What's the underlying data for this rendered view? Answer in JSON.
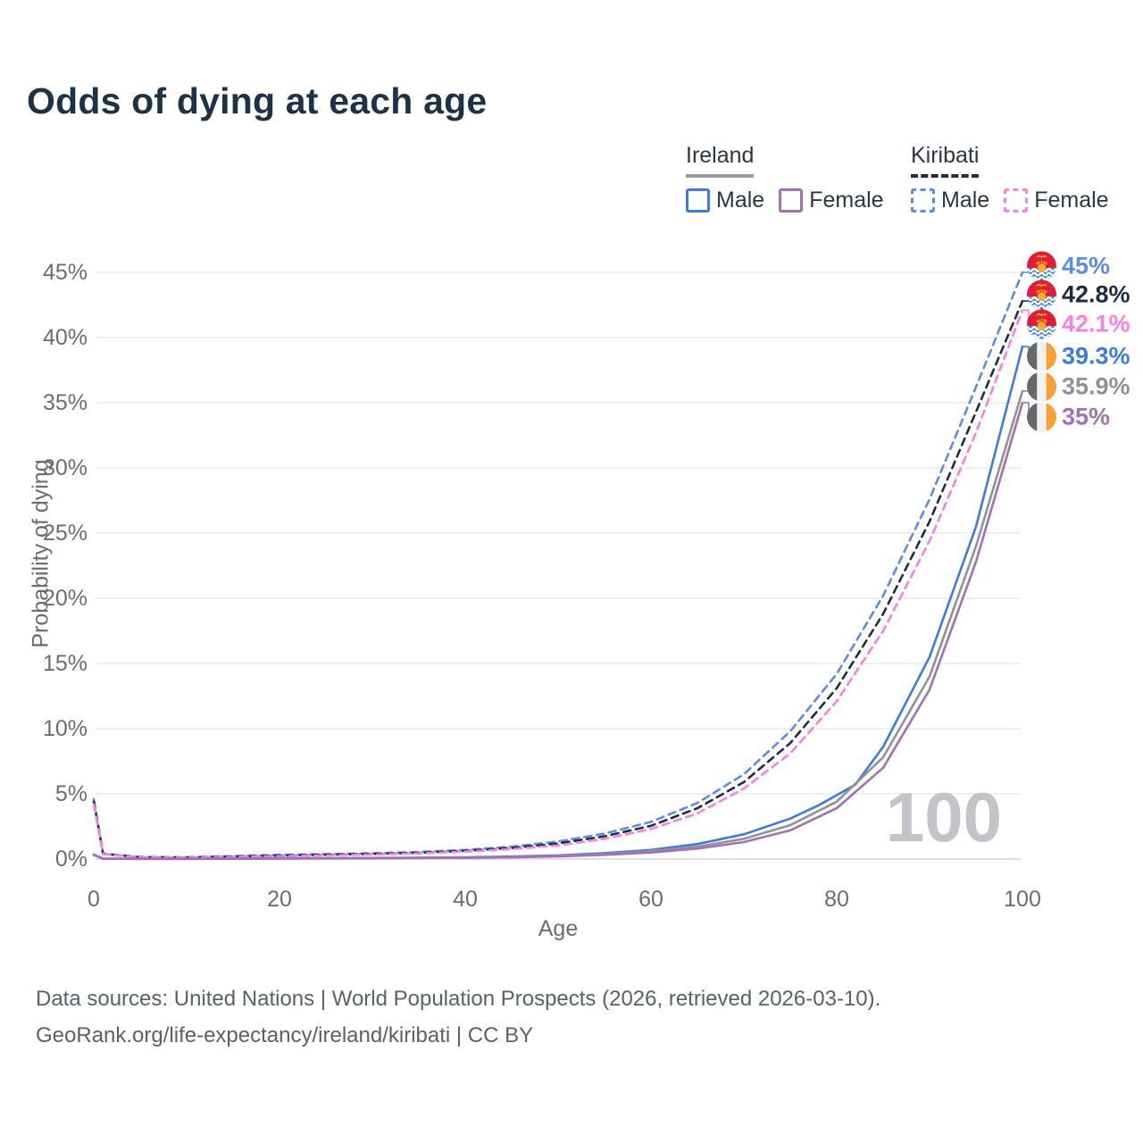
{
  "header": {
    "title": "Odds of dying at each age"
  },
  "legend": {
    "groups": [
      {
        "label": "Ireland",
        "line_style": "solid",
        "line_color": "#9a9a9a",
        "items": [
          {
            "label": "Male",
            "color": "#3d7be0"
          },
          {
            "label": "Female",
            "color": "#a46fb4"
          }
        ]
      },
      {
        "label": "Kiribati",
        "line_style": "dashed",
        "line_color": "#1e2c45",
        "items": [
          {
            "label": "Male",
            "color": "#5b8ce9"
          },
          {
            "label": "Female",
            "color": "#fa7de9"
          }
        ]
      }
    ]
  },
  "chart_data": {
    "type": "line",
    "title": "Odds of dying at each age",
    "xlabel": "Age",
    "ylabel": "Probability of dying",
    "xlim": [
      0,
      100
    ],
    "ylim": [
      0,
      45
    ],
    "grid": "horizontal",
    "legend_position": "top-right",
    "age_counter": "100",
    "xticks": {
      "values": [
        0,
        20,
        40,
        60,
        80,
        100
      ],
      "labels": [
        "0",
        "20",
        "40",
        "60",
        "80",
        "100"
      ]
    },
    "yticks": {
      "values": [
        0,
        5,
        10,
        15,
        20,
        25,
        30,
        35,
        40,
        45
      ],
      "labels": [
        "0%",
        "5%",
        "10%",
        "15%",
        "20%",
        "25%",
        "30%",
        "35%",
        "40%",
        "45%"
      ]
    },
    "series": [
      {
        "name": "Kiribati Male",
        "country": "Kiribati",
        "sex": "Male",
        "color": "#5b8ce9",
        "dash": true,
        "end_label": "45%",
        "points": [
          [
            0,
            4.6
          ],
          [
            1,
            0.42
          ],
          [
            5,
            0.16
          ],
          [
            10,
            0.14
          ],
          [
            15,
            0.22
          ],
          [
            20,
            0.32
          ],
          [
            25,
            0.38
          ],
          [
            30,
            0.44
          ],
          [
            35,
            0.54
          ],
          [
            40,
            0.7
          ],
          [
            45,
            0.95
          ],
          [
            50,
            1.35
          ],
          [
            55,
            1.95
          ],
          [
            60,
            2.85
          ],
          [
            65,
            4.3
          ],
          [
            70,
            6.5
          ],
          [
            75,
            9.8
          ],
          [
            80,
            14.2
          ],
          [
            85,
            20.2
          ],
          [
            90,
            27.6
          ],
          [
            95,
            36.2
          ],
          [
            100,
            45
          ]
        ]
      },
      {
        "name": "Kiribati Both sexes",
        "country": "Kiribati",
        "sex": "Both",
        "color": "#1e2c45",
        "dash": true,
        "end_label": "42.8%",
        "points": [
          [
            0,
            4.4
          ],
          [
            1,
            0.4
          ],
          [
            5,
            0.14
          ],
          [
            10,
            0.12
          ],
          [
            15,
            0.19
          ],
          [
            20,
            0.27
          ],
          [
            25,
            0.33
          ],
          [
            30,
            0.39
          ],
          [
            35,
            0.48
          ],
          [
            40,
            0.63
          ],
          [
            45,
            0.85
          ],
          [
            50,
            1.2
          ],
          [
            55,
            1.75
          ],
          [
            60,
            2.55
          ],
          [
            65,
            3.9
          ],
          [
            70,
            5.9
          ],
          [
            75,
            8.9
          ],
          [
            80,
            13.1
          ],
          [
            85,
            18.8
          ],
          [
            90,
            25.9
          ],
          [
            95,
            34.3
          ],
          [
            100,
            42.8
          ]
        ]
      },
      {
        "name": "Kiribati Female",
        "country": "Kiribati",
        "sex": "Female",
        "color": "#fa7de9",
        "dash": true,
        "end_label": "42.1%",
        "points": [
          [
            0,
            4.2
          ],
          [
            1,
            0.37
          ],
          [
            5,
            0.13
          ],
          [
            10,
            0.11
          ],
          [
            15,
            0.16
          ],
          [
            20,
            0.22
          ],
          [
            25,
            0.28
          ],
          [
            30,
            0.34
          ],
          [
            35,
            0.43
          ],
          [
            40,
            0.57
          ],
          [
            45,
            0.76
          ],
          [
            50,
            1.05
          ],
          [
            55,
            1.55
          ],
          [
            60,
            2.3
          ],
          [
            65,
            3.5
          ],
          [
            70,
            5.4
          ],
          [
            75,
            8.1
          ],
          [
            80,
            12.1
          ],
          [
            85,
            17.5
          ],
          [
            90,
            24.4
          ],
          [
            95,
            32.7
          ],
          [
            100,
            42.1
          ]
        ]
      },
      {
        "name": "Ireland Male",
        "country": "Ireland",
        "sex": "Male",
        "color": "#3d7be0",
        "dash": false,
        "end_label": "39.3%",
        "points": [
          [
            0,
            0.35
          ],
          [
            1,
            0.03
          ],
          [
            5,
            0.02
          ],
          [
            10,
            0.02
          ],
          [
            15,
            0.04
          ],
          [
            20,
            0.06
          ],
          [
            25,
            0.07
          ],
          [
            30,
            0.08
          ],
          [
            35,
            0.1
          ],
          [
            40,
            0.13
          ],
          [
            45,
            0.19
          ],
          [
            50,
            0.28
          ],
          [
            55,
            0.45
          ],
          [
            60,
            0.7
          ],
          [
            65,
            1.15
          ],
          [
            70,
            1.9
          ],
          [
            75,
            3.1
          ],
          [
            78,
            4.1
          ],
          [
            80,
            4.9
          ],
          [
            82,
            5.7
          ],
          [
            85,
            8.6
          ],
          [
            90,
            15.5
          ],
          [
            95,
            25.5
          ],
          [
            100,
            39.3
          ]
        ]
      },
      {
        "name": "Ireland Both sexes",
        "country": "Ireland",
        "sex": "Both",
        "color": "#8f9296",
        "dash": false,
        "end_label": "35.9%",
        "points": [
          [
            0,
            0.33
          ],
          [
            1,
            0.025
          ],
          [
            5,
            0.015
          ],
          [
            10,
            0.015
          ],
          [
            15,
            0.03
          ],
          [
            20,
            0.05
          ],
          [
            25,
            0.06
          ],
          [
            30,
            0.07
          ],
          [
            35,
            0.09
          ],
          [
            40,
            0.11
          ],
          [
            45,
            0.16
          ],
          [
            50,
            0.24
          ],
          [
            55,
            0.38
          ],
          [
            60,
            0.6
          ],
          [
            65,
            0.95
          ],
          [
            70,
            1.55
          ],
          [
            75,
            2.6
          ],
          [
            80,
            4.4
          ],
          [
            85,
            7.8
          ],
          [
            90,
            14
          ],
          [
            95,
            24
          ],
          [
            100,
            35.9
          ]
        ]
      },
      {
        "name": "Ireland Female",
        "country": "Ireland",
        "sex": "Female",
        "color": "#a46fb4",
        "dash": false,
        "end_label": "35%",
        "points": [
          [
            0,
            0.3
          ],
          [
            1,
            0.02
          ],
          [
            5,
            0.012
          ],
          [
            10,
            0.012
          ],
          [
            15,
            0.02
          ],
          [
            20,
            0.04
          ],
          [
            25,
            0.05
          ],
          [
            30,
            0.06
          ],
          [
            35,
            0.08
          ],
          [
            40,
            0.09
          ],
          [
            45,
            0.13
          ],
          [
            50,
            0.2
          ],
          [
            55,
            0.32
          ],
          [
            60,
            0.5
          ],
          [
            65,
            0.8
          ],
          [
            70,
            1.3
          ],
          [
            75,
            2.2
          ],
          [
            80,
            3.9
          ],
          [
            85,
            7.0
          ],
          [
            90,
            13
          ],
          [
            95,
            22.8
          ],
          [
            100,
            35
          ]
        ]
      }
    ]
  },
  "footer": {
    "line1": "Data sources: United Nations | World Population Prospects (2026, retrieved 2026-03-10).",
    "line2": "GeoRank.org/life-expectancy/ireland/kiribati | CC BY"
  }
}
